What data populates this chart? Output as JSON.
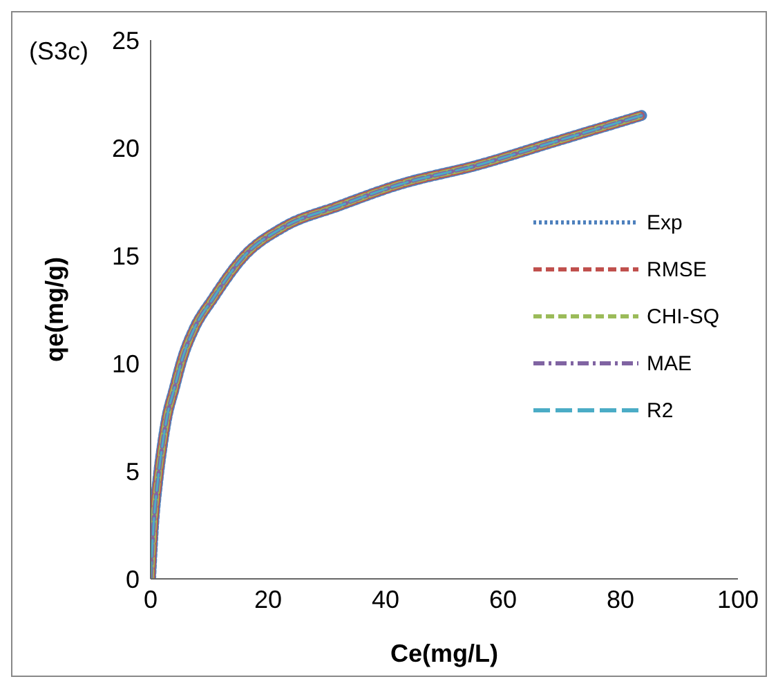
{
  "chart_data": {
    "type": "line",
    "xlabel": "Ce(mg/L)",
    "ylabel": "qe(mg/g)",
    "annotations": [
      "(S3c)"
    ],
    "x": [
      0,
      0.5,
      1.2,
      2,
      2.7,
      4,
      5.5,
      7.4,
      10.6,
      16,
      22.5,
      32,
      42.4,
      55.7,
      69,
      83.6
    ],
    "series": [
      {
        "name": "Exp",
        "color": "#4f81bd",
        "line_style": "dotted",
        "values": [
          0,
          2.5,
          4.5,
          6.2,
          7.4,
          8.8,
          10.3,
          11.6,
          13,
          15,
          16.3,
          17.3,
          18.3,
          19.2,
          20.3,
          21.5
        ]
      },
      {
        "name": "RMSE",
        "color": "#c0504d",
        "line_style": "dashed",
        "values": [
          0,
          2.5,
          4.5,
          6.2,
          7.4,
          8.8,
          10.3,
          11.6,
          13,
          15,
          16.3,
          17.3,
          18.3,
          19.2,
          20.3,
          21.5
        ]
      },
      {
        "name": "CHI-SQ",
        "color": "#9bbb59",
        "line_style": "dashed",
        "values": [
          0,
          2.5,
          4.5,
          6.2,
          7.4,
          8.8,
          10.3,
          11.6,
          13,
          15,
          16.3,
          17.3,
          18.3,
          19.2,
          20.3,
          21.5
        ]
      },
      {
        "name": "MAE",
        "color": "#8064a2",
        "line_style": "dashdot",
        "values": [
          0,
          2.5,
          4.5,
          6.2,
          7.4,
          8.8,
          10.3,
          11.6,
          13,
          15,
          16.3,
          17.3,
          18.3,
          19.2,
          20.3,
          21.5
        ]
      },
      {
        "name": "R2",
        "color": "#4bacc6",
        "line_style": "longdash",
        "values": [
          0,
          2.5,
          4.5,
          6.2,
          7.4,
          8.8,
          10.3,
          11.6,
          13,
          15,
          16.3,
          17.3,
          18.3,
          19.2,
          20.3,
          21.5
        ]
      }
    ],
    "xlim": [
      0,
      100
    ],
    "xticks": [
      0,
      20,
      40,
      60,
      80,
      100
    ],
    "ylim": [
      0,
      25
    ],
    "yticks": [
      0,
      5,
      10,
      15,
      20,
      25
    ],
    "grid": false,
    "legend": "right",
    "marker": "none"
  }
}
